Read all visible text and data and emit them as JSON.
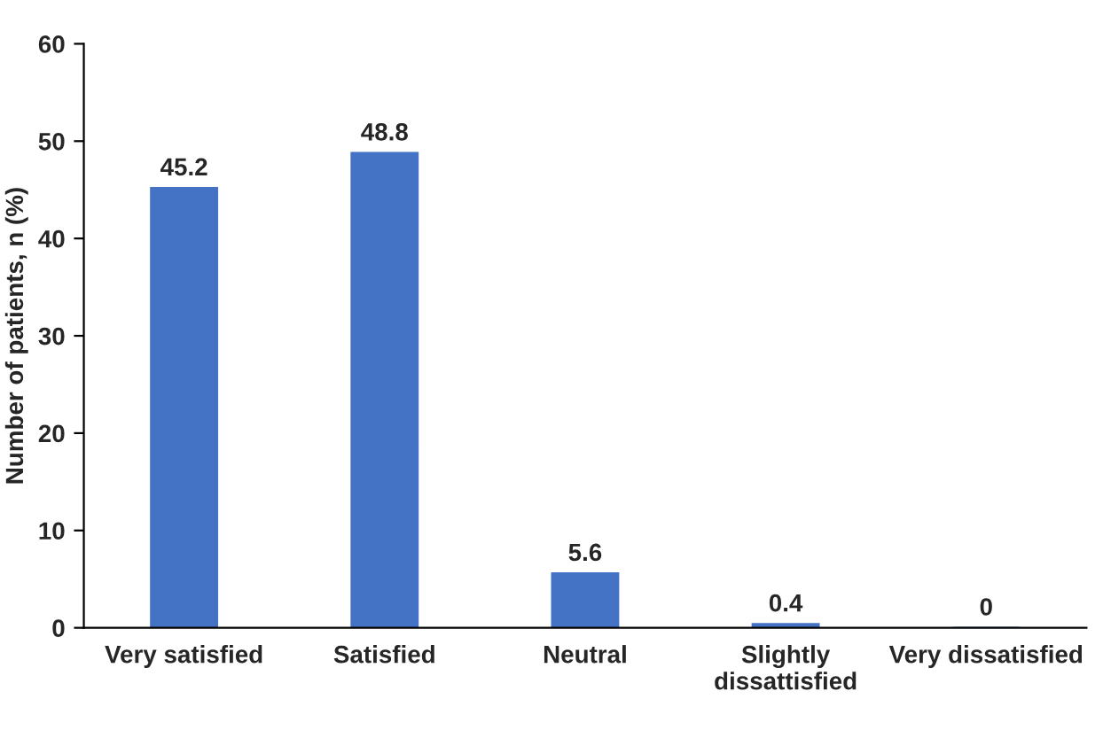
{
  "chart_data": {
    "type": "bar",
    "ylabel": "Number of patients, n (%)",
    "categories": [
      "Very satisfied",
      "Satisfied",
      "Neutral",
      "Slightly\ndissattisfied",
      "Very dissatisfied"
    ],
    "values": [
      45.2,
      48.8,
      5.6,
      0.4,
      0
    ],
    "color": "#4472c4",
    "ylim": [
      0,
      60
    ],
    "yticks": [
      0,
      10,
      20,
      30,
      40,
      50,
      60
    ],
    "grid": false,
    "data_labels": true
  }
}
